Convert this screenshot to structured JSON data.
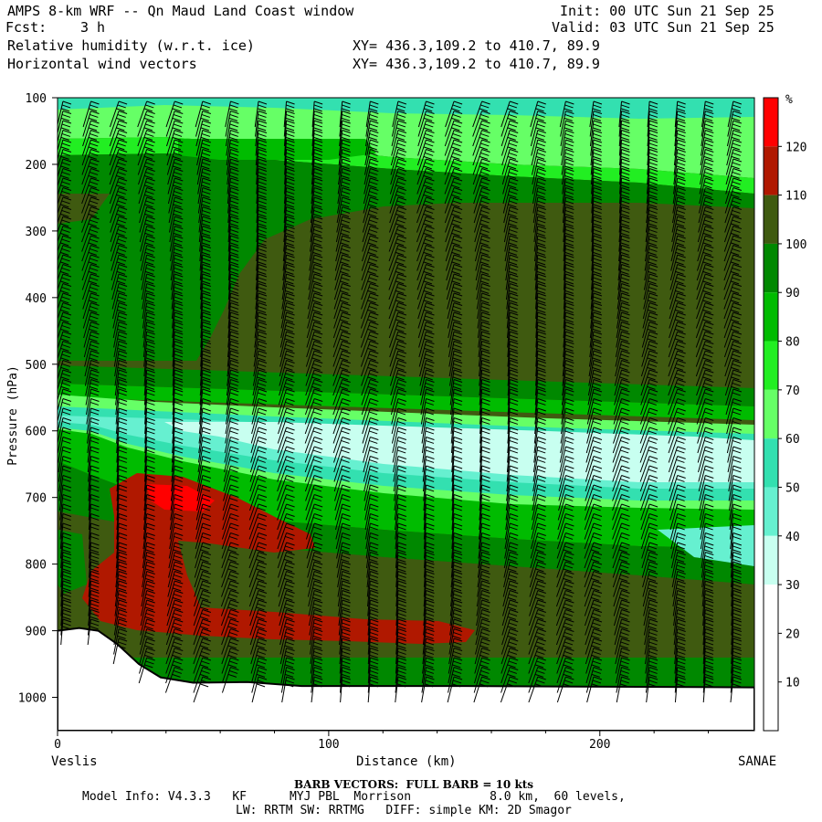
{
  "header": {
    "title": "AMPS 8-km WRF -- Qn Maud Land Coast window",
    "init": "Init: 00 UTC Sun 21 Sep 25",
    "fcst_label": "Fcst:",
    "fcst_value": "3 h",
    "valid": "Valid: 03 UTC Sun 21 Sep 25",
    "field1": "Relative humidity (w.r.t. ice)",
    "field1_xy": "XY= 436.3,109.2 to 410.7, 89.9",
    "field2": "Horizontal wind vectors",
    "field2_xy": "XY= 436.3,109.2 to 410.7, 89.9"
  },
  "footer": {
    "barb_note": "BARB VECTORS:  FULL BARB = 10 kts",
    "model_info": "Model Info: V4.3.3   KF      MYJ PBL  Morrison           8.0 km,  60 levels,",
    "physics": "LW: RRTM SW: RRTMG   DIFF: simple KM: 2D Smagor"
  },
  "chart_data": {
    "type": "heatmap",
    "title": "Relative humidity (w.r.t. ice) cross-section",
    "xlabel": "Distance (km)",
    "ylabel": "Pressure (hPa)",
    "x_start_label": "Veslis",
    "x_end_label": "SANAE",
    "xlim": [
      0,
      257
    ],
    "ylim": [
      100,
      1050
    ],
    "x_ticks": [
      0,
      100,
      200
    ],
    "y_ticks": [
      100,
      200,
      300,
      400,
      500,
      600,
      700,
      800,
      900,
      1000
    ],
    "colorbar": {
      "unit": "%",
      "levels": [
        10,
        20,
        30,
        40,
        50,
        60,
        70,
        80,
        90,
        100,
        110,
        120
      ],
      "colors": [
        "#ffffff",
        "#ffffff",
        "#ffffff",
        "#c8fff0",
        "#66f0d0",
        "#33e0b0",
        "#66ff66",
        "#22ee22",
        "#00bb00",
        "#008800",
        "#3f5a10",
        "#b01800",
        "#ff0000"
      ]
    },
    "terrain_surface": [
      [
        0,
        900
      ],
      [
        8,
        896
      ],
      [
        15,
        900
      ],
      [
        22,
        920
      ],
      [
        30,
        950
      ],
      [
        38,
        970
      ],
      [
        50,
        978
      ],
      [
        70,
        977
      ],
      [
        90,
        983
      ],
      [
        150,
        983
      ],
      [
        257,
        985
      ]
    ],
    "barbs_per_column_note": "Full barb = 10 kts"
  }
}
